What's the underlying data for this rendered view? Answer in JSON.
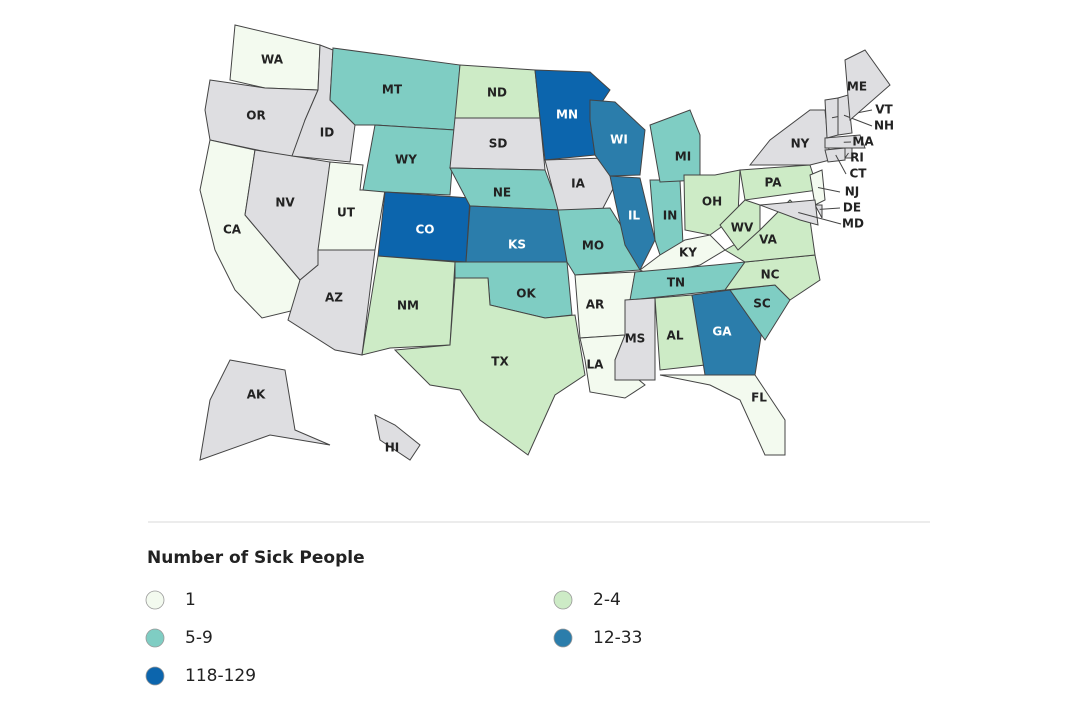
{
  "map": {
    "no_data_color": "#dedee1",
    "states": [
      {
        "label": "WA",
        "group": 0
      },
      {
        "label": "OR",
        "group": null
      },
      {
        "label": "CA",
        "group": 0
      },
      {
        "label": "NV",
        "group": null
      },
      {
        "label": "ID",
        "group": null
      },
      {
        "label": "UT",
        "group": 0
      },
      {
        "label": "AZ",
        "group": null
      },
      {
        "label": "MT",
        "group": 2
      },
      {
        "label": "WY",
        "group": 2
      },
      {
        "label": "CO",
        "group": 4
      },
      {
        "label": "NM",
        "group": 1
      },
      {
        "label": "ND",
        "group": 1
      },
      {
        "label": "SD",
        "group": null
      },
      {
        "label": "NE",
        "group": 2
      },
      {
        "label": "KS",
        "group": 3
      },
      {
        "label": "OK",
        "group": 2
      },
      {
        "label": "TX",
        "group": 1
      },
      {
        "label": "MN",
        "group": 4
      },
      {
        "label": "IA",
        "group": null
      },
      {
        "label": "MO",
        "group": 2
      },
      {
        "label": "AR",
        "group": 0
      },
      {
        "label": "LA",
        "group": 0
      },
      {
        "label": "WI",
        "group": 3
      },
      {
        "label": "IL",
        "group": 3
      },
      {
        "label": "IN",
        "group": 2
      },
      {
        "label": "MI",
        "group": 2
      },
      {
        "label": "OH",
        "group": 1
      },
      {
        "label": "KY",
        "group": 0
      },
      {
        "label": "TN",
        "group": 2
      },
      {
        "label": "MS",
        "group": null
      },
      {
        "label": "AL",
        "group": 1
      },
      {
        "label": "GA",
        "group": 3
      },
      {
        "label": "FL",
        "group": 0
      },
      {
        "label": "SC",
        "group": 2
      },
      {
        "label": "NC",
        "group": 1
      },
      {
        "label": "VA",
        "group": 1
      },
      {
        "label": "WV",
        "group": 1
      },
      {
        "label": "PA",
        "group": 1
      },
      {
        "label": "NY",
        "group": null
      },
      {
        "label": "NJ",
        "group": 0
      },
      {
        "label": "DE",
        "group": null
      },
      {
        "label": "MD",
        "group": null
      },
      {
        "label": "CT",
        "group": null
      },
      {
        "label": "RI",
        "group": null
      },
      {
        "label": "MA",
        "group": null
      },
      {
        "label": "VT",
        "group": null
      },
      {
        "label": "NH",
        "group": null
      },
      {
        "label": "ME",
        "group": null
      },
      {
        "label": "AK",
        "group": null
      },
      {
        "label": "HI",
        "group": null
      }
    ]
  },
  "legend": {
    "title": "Number of Sick People",
    "items": [
      {
        "label": "1",
        "color": "#f3faef"
      },
      {
        "label": "2-4",
        "color": "#cdebc6"
      },
      {
        "label": "5-9",
        "color": "#7fcdc3"
      },
      {
        "label": "12-33",
        "color": "#2b7dab"
      },
      {
        "label": "118-129",
        "color": "#0c65ad"
      }
    ]
  }
}
